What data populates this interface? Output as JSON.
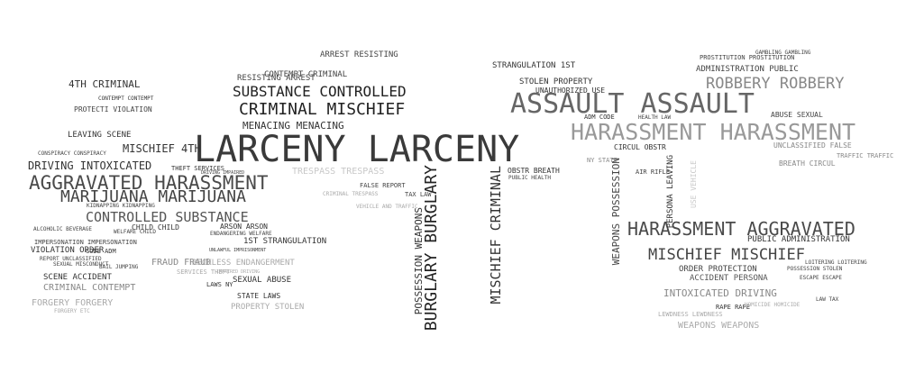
{
  "wordcloud": {
    "large": {
      "larceny": "LARCENY LARCENY",
      "assault": "ASSAULT ASSAULT",
      "harassment_top": "HARASSMENT HARASSMENT",
      "aggravated_harassment": "AGGRAVATED HARASSMENT",
      "harassment_aggravated": "HARASSMENT AGGRAVATED",
      "criminal_mischief": "CRIMINAL MISCHIEF",
      "substance_controlled": "SUBSTANCE CONTROLLED",
      "marijuana": "MARIJUANA MARIJUANA",
      "controlled_substance": "CONTROLLED SUBSTANCE",
      "mischief_mischief": "MISCHIEF MISCHIEF",
      "robbery": "ROBBERY ROBBERY",
      "burglary": "BURGLARY BURGLARY",
      "possession_weapons": "POSSESSION WEAPONS",
      "mischief_criminal": "MISCHIEF CRIMINAL",
      "weapons_possession": "WEAPONS POSSESSION"
    },
    "medium": {
      "driving_intoxicated": "DRIVING INTOXICATED",
      "mischief_4th": "MISCHIEF 4TH",
      "fourth_criminal": "4TH CRIMINAL",
      "menacing": "MENACING MENACING",
      "resisting_arrest": "RESISTING ARREST",
      "arrest_resisting": "ARREST RESISTING",
      "contempt_criminal": "CONTEMPT CRIMINAL",
      "intoxicated_driving": "INTOXICATED DRIVING",
      "criminal_contempt": "CRIMINAL CONTEMPT",
      "forgery": "FORGERY FORGERY",
      "fraud": "FRAUD FRAUD",
      "stolen_property": "STOLEN PROPERTY",
      "strangulation_1st": "STRANGULATION 1ST",
      "first_strangulation": "1ST STRANGULATION",
      "public_administration": "PUBLIC ADMINISTRATION",
      "administration_public": "ADMINISTRATION PUBLIC",
      "order_protection": "ORDER PROTECTION",
      "accident_persona": "ACCIDENT PERSONA",
      "reckless_endangerment": "RECKLESS ENDANGERMENT",
      "sexual_abuse": "SEXUAL ABUSE",
      "state_laws": "STATE LAWS",
      "property_stolen": "PROPERTY STOLEN",
      "weapons_weapons": "WEAPONS WEAPONS",
      "unclassified_false": "UNCLASSIFIED FALSE",
      "trespass": "TRESPASS TRESPASS",
      "violation_order": "VIOLATION ORDER",
      "scene_accident": "SCENE ACCIDENT",
      "leaving_scene": "LEAVING SCENE",
      "child_child": "CHILD CHILD",
      "arson_arson": "ARSON ARSON",
      "protecti_violation": "PROTECTI VIOLATION",
      "obstr_breath": "OBSTR BREATH",
      "circul_obstr": "CIRCUL OBSTR",
      "persona_leaving": "PERSONA LEAVING",
      "theft_services": "THEFT SERVICES",
      "abuse_sexual": "ABUSE SEXUAL",
      "breath_circul": "BREATH CIRCUL",
      "traffic_traffic": "TRAFFIC TRAFFIC",
      "unauthorized_use": "UNAUTHORIZED USE",
      "adm_code": "ADM CODE",
      "code_adm": "CODE ADM",
      "false_report": "FALSE REPORT",
      "tax_law": "TAX LAW",
      "ny_state": "NY STATE",
      "air_rifle": "AIR RIFLE",
      "rape_rape": "RAPE RAPE",
      "laws_ny": "LAWS NY",
      "impersonation": "IMPERSONATION IMPERSONATION",
      "report_unclassified": "REPORT UNCLASSIFIED",
      "contempt_contempt": "CONTEMPT CONTEMPT",
      "criminal_trespass": "CRIMINAL TRESPASS",
      "public_health": "PUBLIC HEALTH",
      "health_law": "HEALTH LAW",
      "law_tax": "LAW TAX",
      "service_vehicle": "USE VEHICLE",
      "services_theft": "SERVICES THEFT",
      "driving_impaired": "DRIVING IMPAIRED",
      "intoxicated_driving2": "IMPAIRED DRIVING",
      "lewdness": "LEWDNESS LEWDNESS",
      "sexual_misconduct": "SEXUAL MISCONDUCT",
      "unlawful_imprisonment": "UNLAWFUL IMPRISONMENT",
      "kidnapping": "KIDNAPPING KIDNAPPING",
      "prostitution": "PROSTITUTION PROSTITUTION",
      "gambling": "GAMBLING GAMBLING",
      "escape": "ESCAPE ESCAPE",
      "loitering": "LOITERING LOITERING",
      "bail_jumping": "BAIL JUMPING",
      "vehicle_and_traffic": "VEHICLE AND TRAFFIC",
      "alcoholic_beverage": "ALCOHOLIC BEVERAGE",
      "conspiracy": "CONSPIRACY CONSPIRACY",
      "forgery_etc": "FORGERY ETC",
      "possession_stolen": "POSSESSION STOLEN",
      "endangering_welfare": "ENDANGERING WELFARE",
      "welfare_child": "WELFARE CHILD",
      "homicide": "HOMICIDE HOMICIDE"
    },
    "colors": {
      "dark": "#333333",
      "mid": "#555555",
      "gray": "#888888",
      "light": "#aaaaaa",
      "pale": "#c8c8c8"
    }
  }
}
